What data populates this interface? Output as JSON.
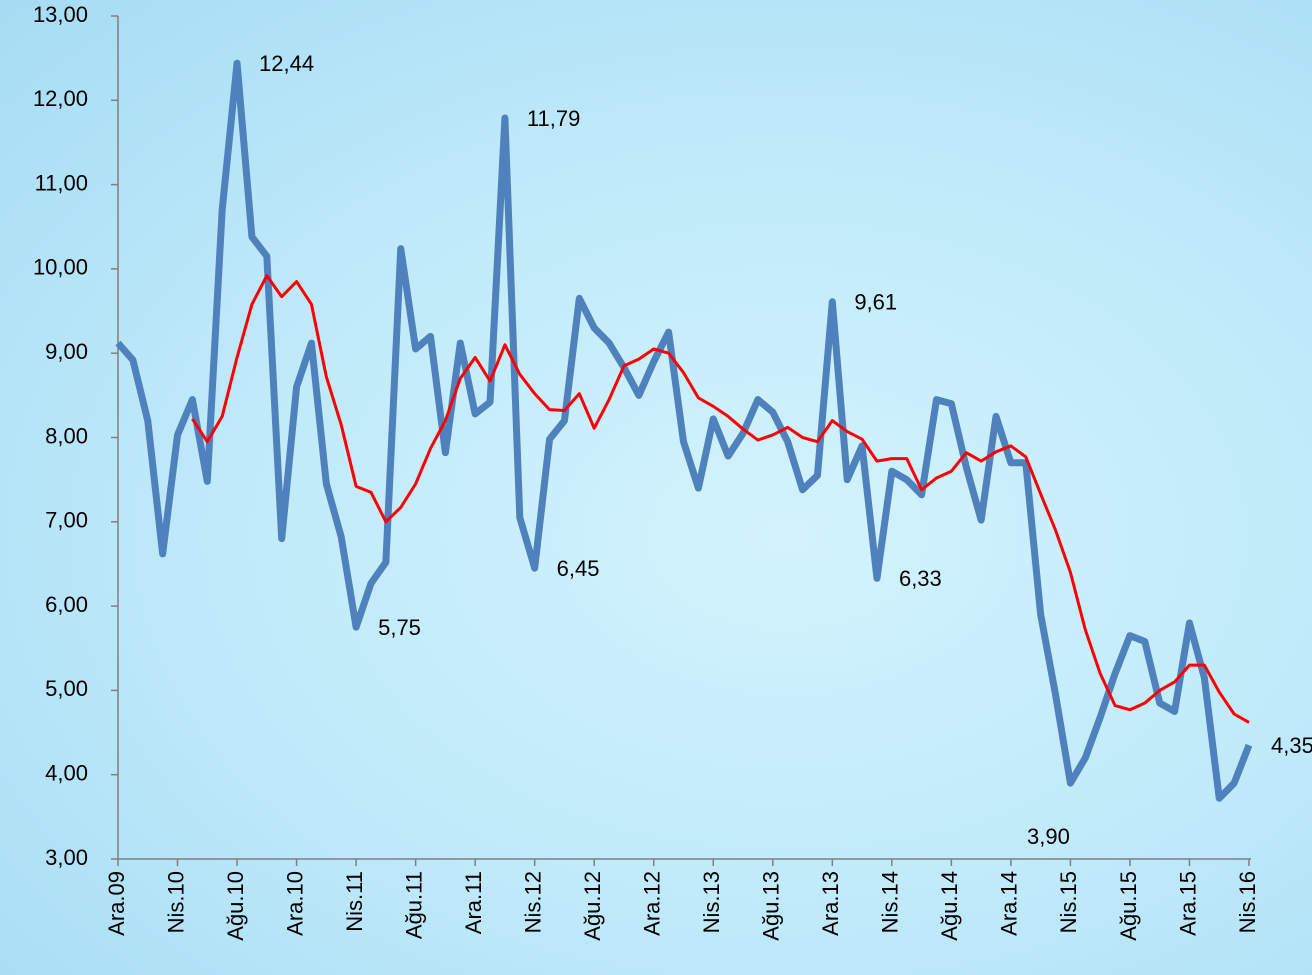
{
  "chart_data": {
    "type": "line",
    "categories": [
      "Ara.09",
      null,
      null,
      null,
      "Nis.10",
      null,
      null,
      null,
      "Ağu.10",
      null,
      null,
      null,
      "Ara.10",
      null,
      null,
      null,
      "Nis.11",
      null,
      null,
      null,
      "Ağu.11",
      null,
      null,
      null,
      "Ara.11",
      null,
      null,
      null,
      "Nis.12",
      null,
      null,
      null,
      "Ağu.12",
      null,
      null,
      null,
      "Ara.12",
      null,
      null,
      null,
      "Nis.13",
      null,
      null,
      null,
      "Ağu.13",
      null,
      null,
      null,
      "Ara.13",
      null,
      null,
      null,
      "Nis.14",
      null,
      null,
      null,
      "Ağu.14",
      null,
      null,
      null,
      "Ara.14",
      null,
      null,
      null,
      "Nis.15",
      null,
      null,
      null,
      "Ağu.15",
      null,
      null,
      null,
      "Ara.15",
      null,
      null,
      null,
      "Nis.16"
    ],
    "series": [
      {
        "color": "#4f81bd",
        "values": [
          9.12,
          8.92,
          8.2,
          6.62,
          8.03,
          8.45,
          7.48,
          10.7,
          12.44,
          10.38,
          10.15,
          6.8,
          8.6,
          9.12,
          7.45,
          6.82,
          5.75,
          6.27,
          6.52,
          10.24,
          9.05,
          9.2,
          7.82,
          9.12,
          8.28,
          8.42,
          11.79,
          7.05,
          6.45,
          7.98,
          8.2,
          9.65,
          9.3,
          9.12,
          8.83,
          8.5,
          8.9,
          9.25,
          7.95,
          7.4,
          8.22,
          7.78,
          8.05,
          8.45,
          8.3,
          7.95,
          7.38,
          7.55,
          9.61,
          7.5,
          7.9,
          6.33,
          7.6,
          7.5,
          7.32,
          8.45,
          8.4,
          7.65,
          7.02,
          8.25,
          7.7,
          7.7,
          5.9,
          4.95,
          3.9,
          4.2,
          4.68,
          5.2,
          5.65,
          5.58,
          4.85,
          4.75,
          5.8,
          5.15,
          3.72,
          3.9,
          4.35
        ],
        "value_labels": [
          null,
          null,
          null,
          null,
          null,
          null,
          null,
          null,
          "12,44",
          null,
          null,
          null,
          null,
          null,
          null,
          null,
          "5,75",
          null,
          null,
          null,
          null,
          null,
          null,
          null,
          null,
          null,
          "11,79",
          null,
          "6,45",
          null,
          null,
          null,
          null,
          null,
          null,
          null,
          null,
          null,
          null,
          null,
          null,
          null,
          null,
          null,
          null,
          null,
          null,
          null,
          "9,61",
          null,
          null,
          "6,33",
          null,
          null,
          null,
          null,
          null,
          null,
          null,
          null,
          null,
          null,
          null,
          null,
          "3,90",
          null,
          null,
          null,
          null,
          null,
          null,
          null,
          null,
          null,
          null,
          null,
          "4,35"
        ]
      },
      {
        "color": "#ff0000",
        "values": [
          null,
          null,
          null,
          null,
          null,
          8.22,
          7.95,
          8.25,
          8.95,
          9.58,
          9.92,
          9.67,
          9.85,
          9.58,
          8.72,
          8.15,
          7.42,
          7.35,
          7.0,
          7.17,
          7.45,
          7.87,
          8.2,
          8.7,
          8.95,
          8.67,
          9.1,
          8.75,
          8.52,
          8.33,
          8.32,
          8.52,
          8.11,
          8.45,
          8.85,
          8.93,
          9.05,
          9.0,
          8.77,
          8.47,
          8.37,
          8.25,
          8.1,
          7.97,
          8.03,
          8.12,
          8.0,
          7.95,
          8.2,
          8.07,
          7.98,
          7.72,
          7.75,
          7.75,
          7.38,
          7.52,
          7.6,
          7.82,
          7.72,
          7.83,
          7.9,
          7.77,
          7.33,
          6.9,
          6.4,
          5.72,
          5.2,
          4.82,
          4.77,
          4.85,
          5.0,
          5.1,
          5.3,
          5.3,
          4.98,
          4.72,
          4.62
        ]
      }
    ],
    "ylim": [
      3,
      13
    ],
    "yticks": [
      {
        "value": 3,
        "label": "3,00"
      },
      {
        "value": 4,
        "label": "4,00"
      },
      {
        "value": 5,
        "label": "5,00"
      },
      {
        "value": 6,
        "label": "6,00"
      },
      {
        "value": 7,
        "label": "7,00"
      },
      {
        "value": 8,
        "label": "8,00"
      },
      {
        "value": 9,
        "label": "9,00"
      },
      {
        "value": 10,
        "label": "10,00"
      },
      {
        "value": 11,
        "label": "11,00"
      },
      {
        "value": 12,
        "label": "12,00"
      },
      {
        "value": 13,
        "label": "13,00"
      }
    ],
    "grid": false
  }
}
